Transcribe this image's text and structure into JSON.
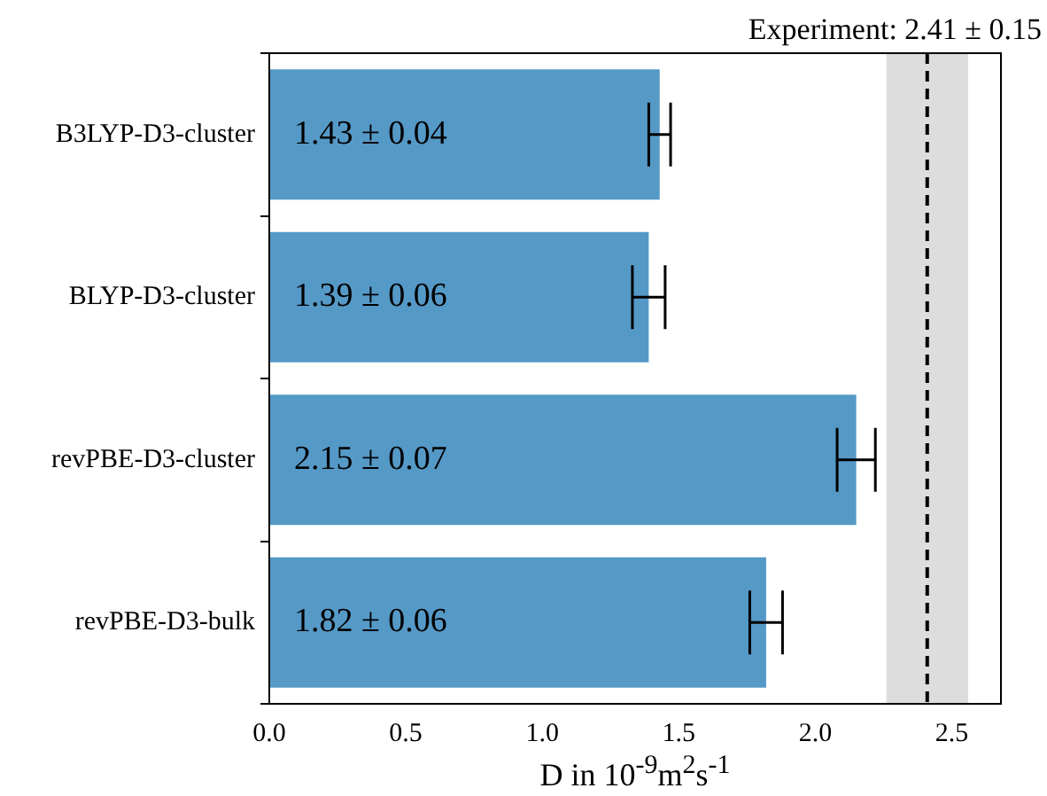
{
  "chart_data": {
    "type": "bar",
    "orientation": "horizontal",
    "xlabel": "D in 10$^{-9}$m$^{2}$s$^{-1}$",
    "categories": [
      "B3LYP-D3-cluster",
      "BLYP-D3-cluster",
      "revPBE-D3-cluster",
      "revPBE-D3-bulk"
    ],
    "values": [
      1.43,
      1.39,
      2.15,
      1.82
    ],
    "errors": [
      0.04,
      0.06,
      0.07,
      0.06
    ],
    "value_labels": [
      "1.43 ± 0.04",
      "1.39 ± 0.06",
      "2.15 ± 0.07",
      "1.82 ± 0.06"
    ],
    "color": "#5599c7",
    "xlim": [
      0,
      2.68
    ],
    "xticks": [
      {
        "value": 0,
        "label": "0.0"
      },
      {
        "value": 0.5,
        "label": "0.5"
      },
      {
        "value": 1,
        "label": "1.0"
      },
      {
        "value": 1.5,
        "label": "1.5"
      },
      {
        "value": 2,
        "label": "2.0"
      },
      {
        "value": 2.5,
        "label": "2.5"
      }
    ],
    "ref_lines": [
      {
        "axis": "x",
        "value": 2.41,
        "label": "Experiment: 2.41 ± 0.15",
        "color": "#000000",
        "line_style": "dashed"
      }
    ],
    "bands": [
      {
        "axis": "x",
        "from": 2.26,
        "to": 2.56,
        "color": "#dddddd"
      }
    ],
    "grid": false,
    "legend": false
  }
}
